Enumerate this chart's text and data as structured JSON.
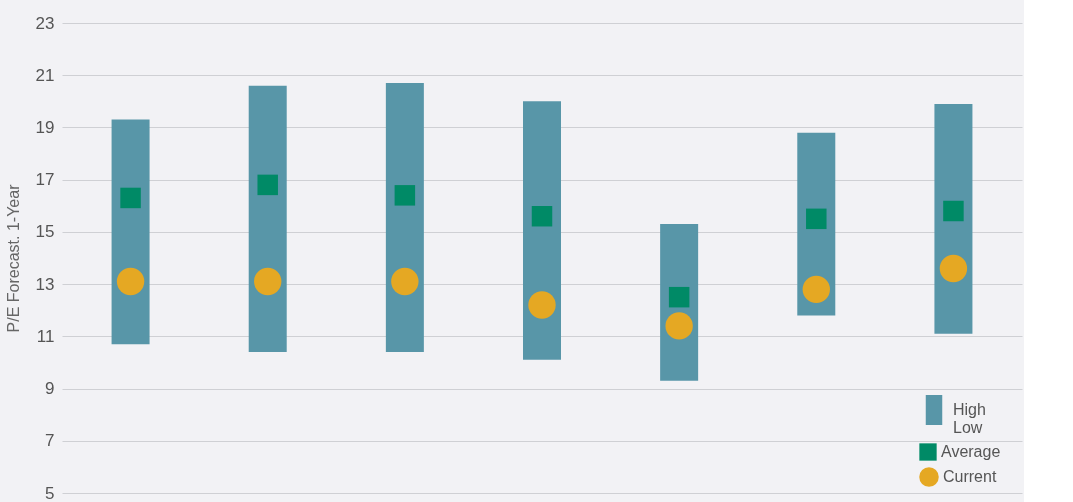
{
  "chart_data": {
    "type": "bar",
    "ylabel": "P/E Forecast. 1-Year",
    "categories": [
      null,
      null,
      null,
      null,
      null,
      null,
      null
    ],
    "series": [
      {
        "name": "High\nLow",
        "color": "#5896a8",
        "values": [
          8.6,
          10.2,
          10.3,
          9.9,
          6.0,
          7.0,
          8.8
        ],
        "base": [
          10.7,
          10.4,
          10.4,
          10.1,
          9.3,
          11.8,
          11.1
        ]
      },
      {
        "name": "Average",
        "type": "scatter",
        "marker": "square",
        "color": "#008a66",
        "values": [
          16.3,
          16.8,
          16.4,
          15.6,
          12.5,
          15.5,
          15.8
        ]
      },
      {
        "name": "Current",
        "type": "scatter",
        "marker": "circle",
        "color": "#e5a823",
        "values": [
          13.1,
          13.1,
          13.1,
          12.2,
          11.4,
          12.8,
          13.6
        ]
      }
    ],
    "ylim": [
      5,
      23
    ],
    "yticks": [
      5,
      7,
      9,
      11,
      13,
      15,
      17,
      19,
      21,
      23
    ],
    "grid": "y",
    "legend": "bottom right",
    "tick_labels": "y"
  }
}
